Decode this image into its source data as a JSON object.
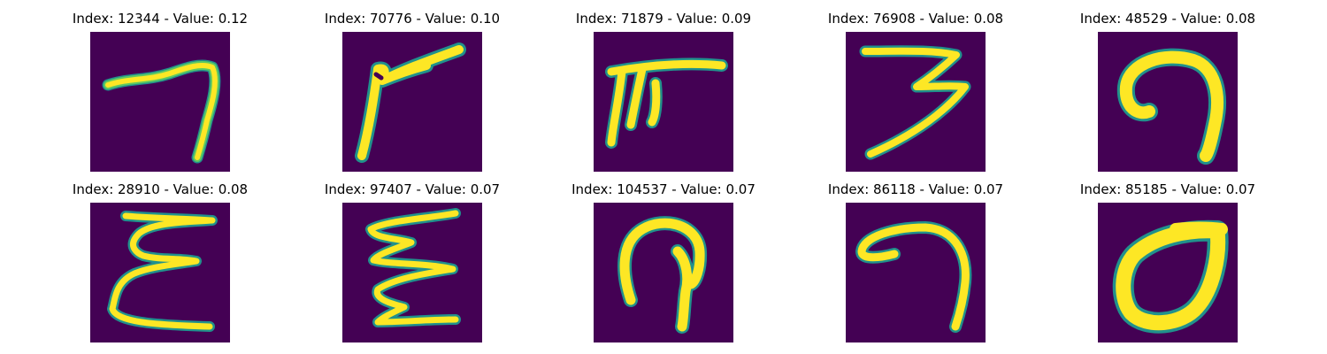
{
  "figure": {
    "background": "#440154",
    "stroke_colors": {
      "edge": "#21918c",
      "mid": "#5ec962",
      "core": "#fde725"
    }
  },
  "panels": [
    {
      "title": "Index: 12344 - Value: 0.12",
      "glyph": "seven-open"
    },
    {
      "title": "Index: 70776 - Value: 0.10",
      "glyph": "slanted-seven"
    },
    {
      "title": "Index: 71879 - Value: 0.09",
      "glyph": "pi-shape"
    },
    {
      "title": "Index: 76908 - Value: 0.08",
      "glyph": "three"
    },
    {
      "title": "Index: 48529 - Value: 0.08",
      "glyph": "curl-hook"
    },
    {
      "title": "Index: 28910 - Value: 0.08",
      "glyph": "zigzag-e"
    },
    {
      "title": "Index: 97407 - Value: 0.07",
      "glyph": "zigzag-w"
    },
    {
      "title": "Index: 104537 - Value: 0.07",
      "glyph": "arch-loop"
    },
    {
      "title": "Index: 86118 - Value: 0.07",
      "glyph": "seven-curl"
    },
    {
      "title": "Index: 85185 - Value: 0.07",
      "glyph": "o-loop"
    }
  ]
}
